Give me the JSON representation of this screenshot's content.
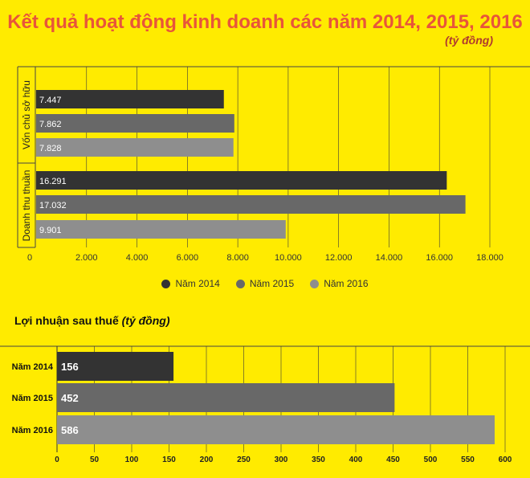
{
  "title": "Kết quả hoạt động kinh doanh các năm 2014, 2015, 2016",
  "unit": "(tỷ đồng)",
  "colors": {
    "background": "#FFEB00",
    "y2014": "#333333",
    "y2015": "#686868",
    "y2016": "#8E8E8E",
    "title": "#E8553A"
  },
  "legend": [
    "Năm 2014",
    "Năm 2015",
    "Năm 2016"
  ],
  "chart_data": [
    {
      "type": "bar",
      "orientation": "horizontal",
      "title": "Kết quả hoạt động kinh doanh các năm 2014, 2015, 2016",
      "unit": "(tỷ đồng)",
      "groups": [
        {
          "name": "Vốn chủ sở hữu",
          "values": [
            7447,
            7862,
            7828
          ],
          "labels": [
            "7.447",
            "7.862",
            "7.828"
          ]
        },
        {
          "name": "Doanh thu thuần",
          "values": [
            16291,
            17032,
            9901
          ],
          "labels": [
            "16.291",
            "17.032",
            "9.901"
          ]
        }
      ],
      "series": [
        "Năm 2014",
        "Năm 2015",
        "Năm 2016"
      ],
      "xlim": [
        0,
        18000
      ],
      "ticks": [
        0,
        2000,
        4000,
        6000,
        8000,
        10000,
        12000,
        14000,
        16000,
        18000
      ],
      "tick_labels": [
        "0",
        "2.000",
        "4.000",
        "6.000",
        "8.000",
        "10.000",
        "12.000",
        "14.000",
        "16.000",
        "18.000"
      ],
      "legend_position": "bottom"
    },
    {
      "type": "bar",
      "orientation": "horizontal",
      "title": "Lợi nhuận sau thuế",
      "unit": "(tỷ đồng)",
      "categories": [
        "Năm 2014",
        "Năm 2015",
        "Năm 2016"
      ],
      "values": [
        156,
        452,
        586
      ],
      "labels": [
        "156",
        "452",
        "586"
      ],
      "xlim": [
        0,
        600
      ],
      "ticks": [
        0,
        50,
        100,
        150,
        200,
        250,
        300,
        350,
        400,
        450,
        500,
        550,
        600
      ],
      "tick_labels": [
        "0",
        "50",
        "100",
        "150",
        "200",
        "250",
        "300",
        "350",
        "400",
        "450",
        "500",
        "550",
        "600"
      ]
    }
  ]
}
